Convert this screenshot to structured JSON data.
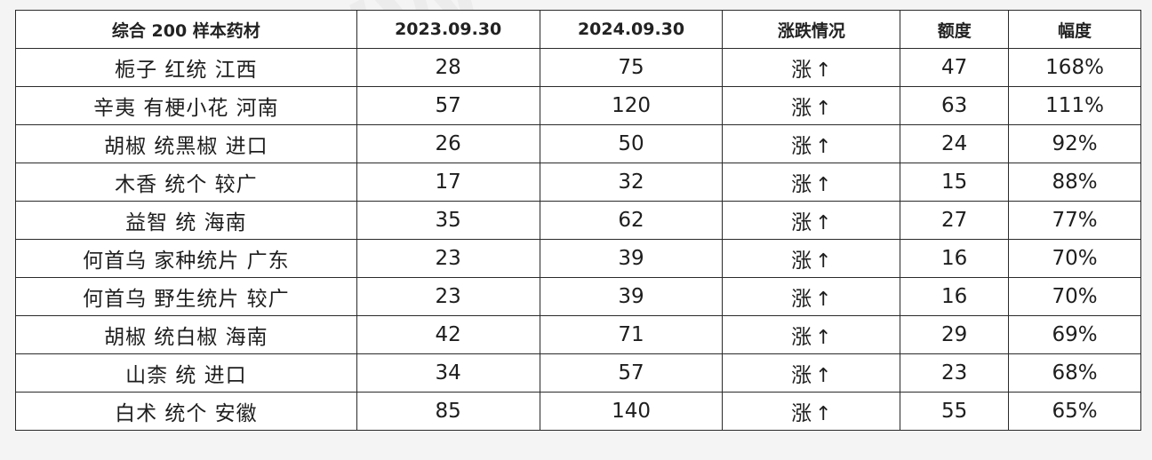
{
  "headers": [
    "综合 200 样本药材",
    "2023.09.30",
    "2024.09.30",
    "涨跌情况",
    "额度",
    "幅度"
  ],
  "trend_color": "#e0303a",
  "rows": [
    {
      "name": "栀子  红统  江西",
      "v2023": "28",
      "v2024": "75",
      "trend": "涨",
      "arrow": "↑",
      "amount": "47",
      "pct": "168%"
    },
    {
      "name": "辛夷  有梗小花  河南",
      "v2023": "57",
      "v2024": "120",
      "trend": "涨",
      "arrow": "↑",
      "amount": "63",
      "pct": "111%"
    },
    {
      "name": "胡椒  统黑椒  进口",
      "v2023": "26",
      "v2024": "50",
      "trend": "涨",
      "arrow": "↑",
      "amount": "24",
      "pct": "92%"
    },
    {
      "name": "木香  统个  较广",
      "v2023": "17",
      "v2024": "32",
      "trend": "涨",
      "arrow": "↑",
      "amount": "15",
      "pct": "88%"
    },
    {
      "name": "益智  统  海南",
      "v2023": "35",
      "v2024": "62",
      "trend": "涨",
      "arrow": "↑",
      "amount": "27",
      "pct": "77%"
    },
    {
      "name": "何首乌  家种统片  广东",
      "v2023": "23",
      "v2024": "39",
      "trend": "涨",
      "arrow": "↑",
      "amount": "16",
      "pct": "70%"
    },
    {
      "name": "何首乌  野生统片  较广",
      "v2023": "23",
      "v2024": "39",
      "trend": "涨",
      "arrow": "↑",
      "amount": "16",
      "pct": "70%"
    },
    {
      "name": "胡椒  统白椒  海南",
      "v2023": "42",
      "v2024": "71",
      "trend": "涨",
      "arrow": "↑",
      "amount": "29",
      "pct": "69%"
    },
    {
      "name": "山柰  统  进口",
      "v2023": "34",
      "v2024": "57",
      "trend": "涨",
      "arrow": "↑",
      "amount": "23",
      "pct": "68%"
    },
    {
      "name": "白术  统个  安徽",
      "v2023": "85",
      "v2024": "140",
      "trend": "涨",
      "arrow": "↑",
      "amount": "55",
      "pct": "65%"
    }
  ]
}
